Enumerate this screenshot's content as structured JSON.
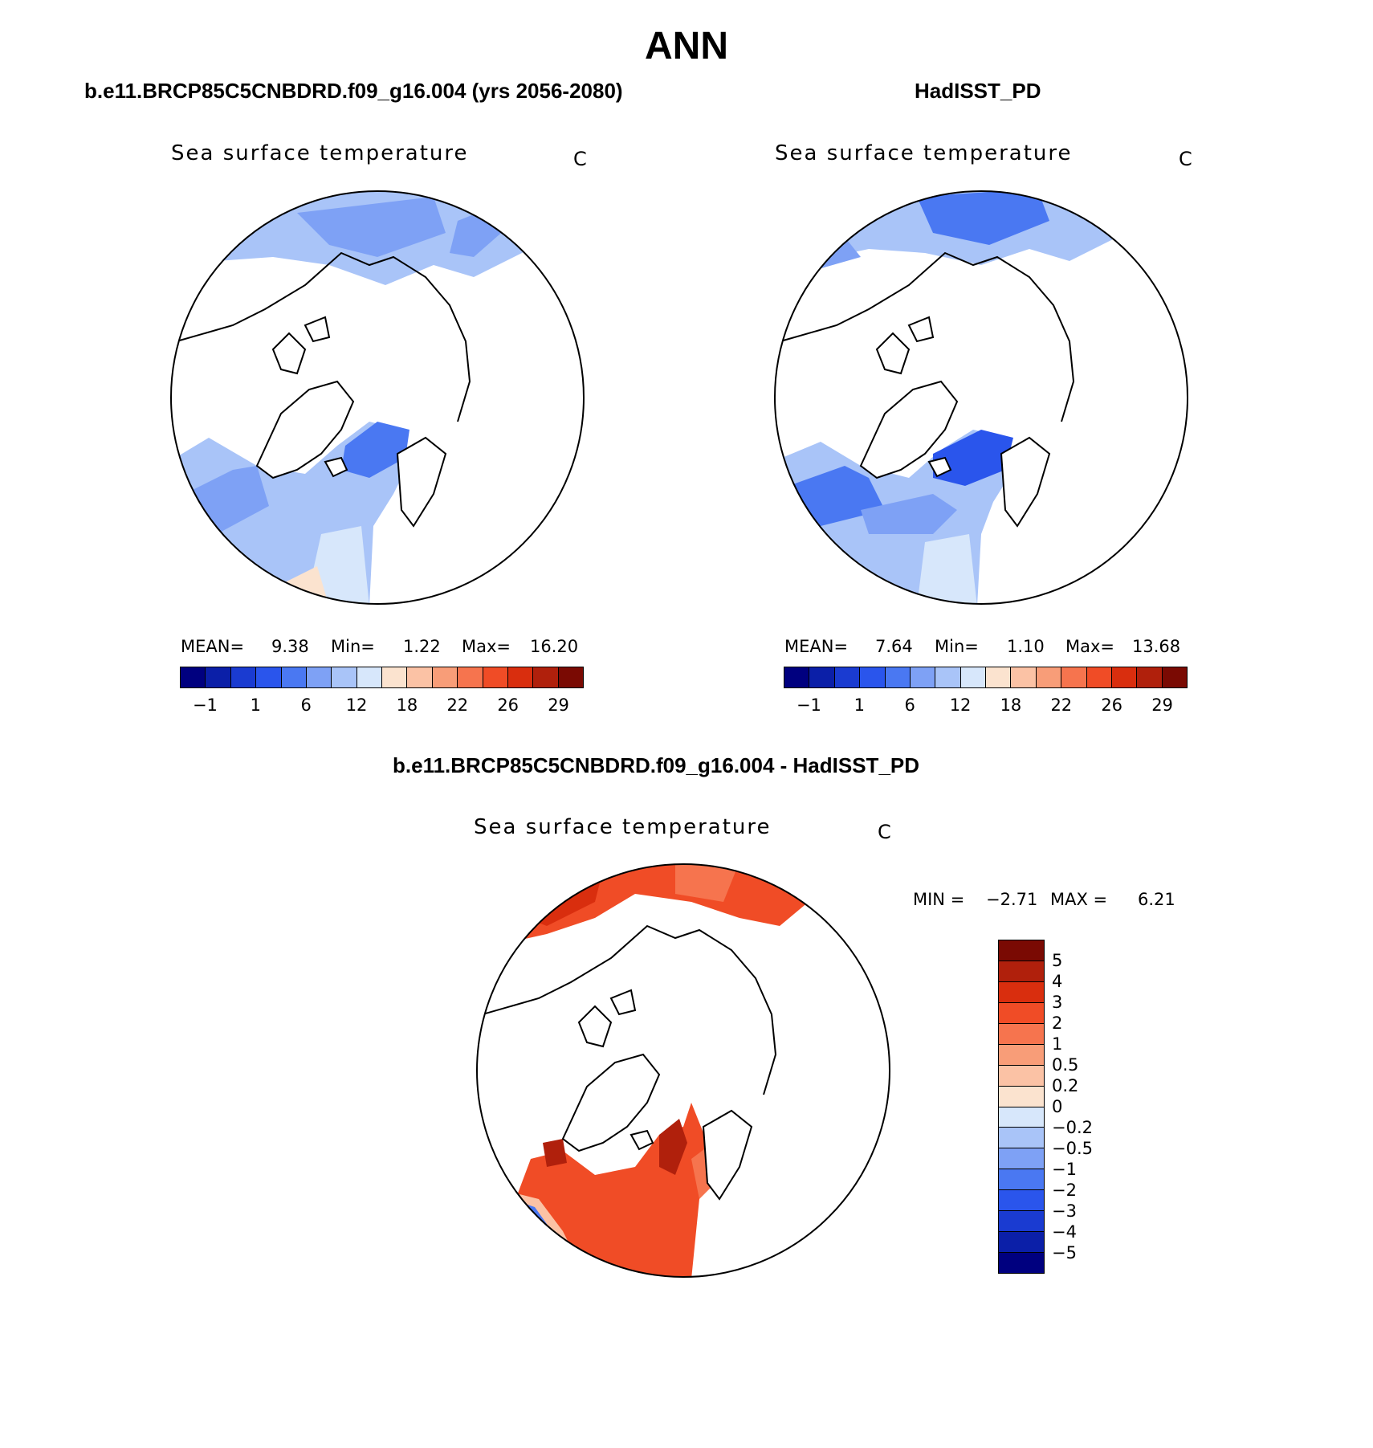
{
  "title": "ANN",
  "panels": [
    {
      "title": "b.e11.BRCP85C5CNBDRD.f09_g16.004 (yrs 2056-2080)",
      "field": "Sea surface temperature",
      "unit": "C",
      "stats": {
        "mean_label": "MEAN=",
        "mean": "9.38",
        "min_label": "Min=",
        "min": "1.22",
        "max_label": "Max=",
        "max": "16.20"
      }
    },
    {
      "title": "HadISST_PD",
      "field": "Sea surface temperature",
      "unit": "C",
      "stats": {
        "mean_label": "MEAN=",
        "mean": "7.64",
        "min_label": "Min=",
        "min": "1.10",
        "max_label": "Max=",
        "max": "13.68"
      }
    },
    {
      "title": "b.e11.BRCP85C5CNBDRD.f09_g16.004 - HadISST_PD",
      "field": "Sea surface temperature",
      "unit": "C",
      "stats": {
        "min_label": "MIN =",
        "min": "−2.71",
        "max_label": "MAX =",
        "max": "6.21"
      }
    }
  ],
  "abs_colorbar": {
    "colors": [
      "#00007f",
      "#0b1fa8",
      "#1a3bd1",
      "#2a55ec",
      "#4a78f2",
      "#7ea1f5",
      "#a9c4f8",
      "#d7e7fb",
      "#fbe3cf",
      "#fbc2a5",
      "#f89d78",
      "#f6744e",
      "#f04c26",
      "#d92e0e",
      "#b0200c",
      "#7a0a03"
    ],
    "tick_labels": [
      "−1",
      "1",
      "6",
      "12",
      "18",
      "22",
      "26",
      "29"
    ]
  },
  "diff_colorbar": {
    "colors": [
      "#7a0a03",
      "#b0200c",
      "#d92e0e",
      "#f04c26",
      "#f6744e",
      "#f89d78",
      "#fbc2a5",
      "#fbe3cf",
      "#d7e7fb",
      "#a9c4f8",
      "#7ea1f5",
      "#4a78f2",
      "#2a55ec",
      "#1a3bd1",
      "#0b1fa8",
      "#00007f"
    ],
    "tick_labels": [
      "5",
      "4",
      "3",
      "2",
      "1",
      "0.5",
      "0.2",
      "0",
      "−0.2",
      "−0.5",
      "−1",
      "−2",
      "−3",
      "−4",
      "−5"
    ]
  }
}
